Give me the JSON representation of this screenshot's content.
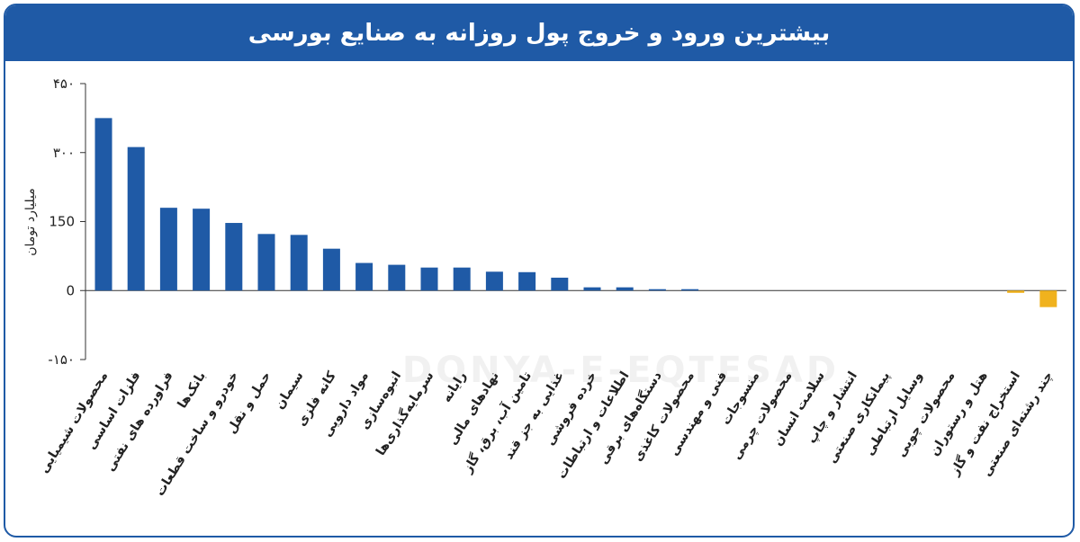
{
  "title": "بیشترین ورود و خروج پول روزانه به صنایع بورسی",
  "watermark": "DONYA-E-EQTESAD",
  "colors": {
    "positive": "#1f5aa6",
    "negative": "#f0b21e",
    "frame": "#1f5aa6"
  },
  "chart_data": {
    "type": "bar",
    "ylabel": "میلیارد تومان",
    "ylim": [
      -150,
      450
    ],
    "yticks": [
      450,
      300,
      150,
      0,
      -150
    ],
    "ytick_labels": [
      "۴۵۰",
      "۳۰۰",
      "150",
      "0",
      "-۱۵۰"
    ],
    "categories": [
      "محصولات شیمیایی",
      "فلزات اساسی",
      "فراورده های نفتی",
      "بانک‌ها",
      "خودرو و ساخت قطعات",
      "حمل و نقل",
      "سیمان",
      "کانه فلزی",
      "مواد دارویی",
      "انبوه‌سازی",
      "سرمایه‌گذاری‌ها",
      "رایانه",
      "نهادهای مالی",
      "تامین آب، برق، گاز",
      "غذایی به جز قند",
      "خرده فروشی",
      "اطلاعات و ارتباطات",
      "دستگاه‌های برقی",
      "محصولات کاغذی",
      "فنی و مهندسی",
      "منسوجات",
      "محصولات چرمی",
      "سلامت انسان",
      "انتشار و چاپ",
      "پیمانکاری صنعتی",
      "وسایل ارتباطی",
      "محصولات چوبی",
      "هتل و رستوران",
      "استخراج نفت و گاز",
      "چند رشته‌ای صنعتی"
    ],
    "values": [
      375,
      312,
      180,
      178,
      147,
      123,
      121,
      91,
      60,
      56,
      50,
      50,
      41,
      40,
      28,
      7,
      7,
      3,
      3,
      0,
      0,
      0,
      0,
      0,
      0,
      0,
      0,
      0,
      -5,
      -36
    ]
  }
}
